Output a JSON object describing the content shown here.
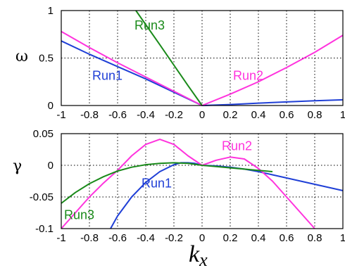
{
  "chart_data": [
    {
      "type": "line",
      "ylabel": "ω",
      "xlim": [
        -1,
        1
      ],
      "ylim": [
        0,
        1
      ],
      "grid": true,
      "xticks": [
        "-1",
        "-0.8",
        "-0.6",
        "-0.4",
        "-0.2",
        "0",
        "0.2",
        "0.4",
        "0.6",
        "0.8",
        "1"
      ],
      "yticks": [
        "0",
        "0.5",
        "1"
      ],
      "series": [
        {
          "name": "Run1",
          "color": "#1f3fd6",
          "label_at": [
            -0.78,
            0.27
          ],
          "x": [
            -1,
            -0.8,
            -0.6,
            -0.4,
            -0.2,
            0,
            0.2,
            0.4,
            0.6,
            0.8,
            1
          ],
          "y": [
            0.68,
            0.54,
            0.41,
            0.28,
            0.14,
            0,
            0.01,
            0.025,
            0.038,
            0.05,
            0.06
          ]
        },
        {
          "name": "Run2",
          "color": "#ff33dd",
          "label_at": [
            0.22,
            0.27
          ],
          "x": [
            -1,
            -0.8,
            -0.6,
            -0.4,
            -0.2,
            0,
            0.2,
            0.4,
            0.6,
            0.8,
            1
          ],
          "y": [
            0.78,
            0.61,
            0.45,
            0.3,
            0.15,
            0,
            0.12,
            0.25,
            0.4,
            0.56,
            0.74
          ]
        },
        {
          "name": "Run3",
          "color": "#1a8a1a",
          "label_at": [
            -0.48,
            0.8
          ],
          "x": [
            -0.47,
            -0.3,
            -0.1,
            0
          ],
          "y": [
            1.0,
            0.64,
            0.21,
            0
          ]
        }
      ]
    },
    {
      "type": "line",
      "xlabel": "k",
      "xlabel_sub": "x",
      "ylabel": "γ",
      "xlim": [
        -1,
        1
      ],
      "ylim": [
        -0.1,
        0.05
      ],
      "grid": true,
      "xticks": [
        "-1",
        "-0.8",
        "-0.6",
        "-0.4",
        "-0.2",
        "0",
        "0.2",
        "0.4",
        "0.6",
        "0.8",
        "1"
      ],
      "yticks": [
        "-0.1",
        "-0.05",
        "0",
        "0.05"
      ],
      "series": [
        {
          "name": "Run1",
          "color": "#1f3fd6",
          "label_at": [
            -0.43,
            -0.035
          ],
          "x": [
            -0.65,
            -0.6,
            -0.5,
            -0.4,
            -0.3,
            -0.2,
            -0.15,
            -0.1,
            -0.05,
            0,
            0.1,
            0.2,
            0.3,
            0.4,
            0.5,
            0.6,
            0.7,
            0.8,
            0.9,
            1
          ],
          "y": [
            -0.1,
            -0.08,
            -0.05,
            -0.027,
            -0.01,
            0.001,
            0.004,
            0.004,
            0.003,
            0,
            -0.001,
            -0.003,
            -0.006,
            -0.01,
            -0.015,
            -0.02,
            -0.025,
            -0.03,
            -0.035,
            -0.04
          ]
        },
        {
          "name": "Run2",
          "color": "#ff33dd",
          "label_at": [
            0.14,
            0.024
          ],
          "x": [
            -1,
            -0.9,
            -0.8,
            -0.7,
            -0.6,
            -0.5,
            -0.4,
            -0.3,
            -0.2,
            -0.1,
            0,
            0.1,
            0.2,
            0.3,
            0.4,
            0.5,
            0.6,
            0.7,
            0.8
          ],
          "y": [
            -0.1,
            -0.075,
            -0.05,
            -0.028,
            -0.008,
            0.015,
            0.033,
            0.041,
            0.033,
            0.015,
            0,
            0.008,
            0.013,
            0.01,
            -0.005,
            -0.025,
            -0.05,
            -0.075,
            -0.1
          ]
        },
        {
          "name": "Run3",
          "color": "#1a8a1a",
          "label_at": [
            -0.98,
            -0.085
          ],
          "x": [
            -1,
            -0.9,
            -0.8,
            -0.7,
            -0.6,
            -0.5,
            -0.4,
            -0.3,
            -0.2,
            -0.1,
            0,
            0.1,
            0.2,
            0.3,
            0.4,
            0.5
          ],
          "y": [
            -0.06,
            -0.043,
            -0.029,
            -0.018,
            -0.009,
            -0.003,
            0.001,
            0.003,
            0.004,
            0.003,
            0,
            -0.002,
            -0.004,
            -0.006,
            -0.008,
            -0.01
          ]
        }
      ]
    }
  ]
}
